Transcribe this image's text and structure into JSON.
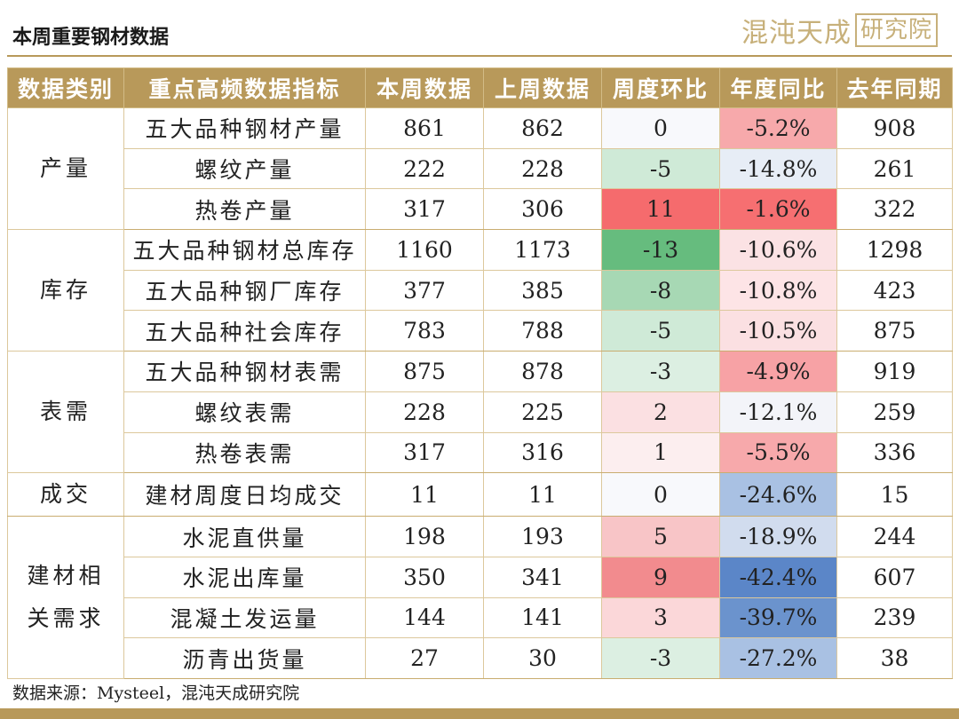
{
  "header": {
    "title": "本周重要钢材数据",
    "logo_text": "混沌天成研究院"
  },
  "colors": {
    "accent": "#b8995a"
  },
  "table": {
    "columns": [
      "数据类别",
      "重点高频数据指标",
      "本周数据",
      "上周数据",
      "周度环比",
      "年度同比",
      "去年同期"
    ],
    "rows": [
      {
        "category": "产量",
        "indicator": "五大品种钢材产量",
        "this_week": "861",
        "last_week": "862",
        "wow": "0",
        "yoy": "-5.2%",
        "last_year": "908",
        "wow_color": "#f8f9fc",
        "yoy_color": "#f7a9ab"
      },
      {
        "indicator": "螺纹产量",
        "this_week": "222",
        "last_week": "228",
        "wow": "-5",
        "yoy": "-14.8%",
        "last_year": "261",
        "wow_color": "#cfead7",
        "yoy_color": "#e7edf6"
      },
      {
        "indicator": "热卷产量",
        "this_week": "317",
        "last_week": "306",
        "wow": "11",
        "yoy": "-1.6%",
        "last_year": "322",
        "wow_color": "#f56b6d",
        "yoy_color": "#f66f71"
      },
      {
        "category": "库存",
        "indicator": "五大品种钢材总库存",
        "this_week": "1160",
        "last_week": "1173",
        "wow": "-13",
        "yoy": "-10.6%",
        "last_year": "1298",
        "wow_color": "#66bc7e",
        "yoy_color": "#fbe2e4"
      },
      {
        "indicator": "五大品种钢厂库存",
        "this_week": "377",
        "last_week": "385",
        "wow": "-8",
        "yoy": "-10.8%",
        "last_year": "423",
        "wow_color": "#a7d8b4",
        "yoy_color": "#fde4e6"
      },
      {
        "indicator": "五大品种社会库存",
        "this_week": "783",
        "last_week": "788",
        "wow": "-5",
        "yoy": "-10.5%",
        "last_year": "875",
        "wow_color": "#cfead7",
        "yoy_color": "#fbe0e2"
      },
      {
        "category": "表需",
        "indicator": "五大品种钢材表需",
        "this_week": "875",
        "last_week": "878",
        "wow": "-3",
        "yoy": "-4.9%",
        "last_year": "919",
        "wow_color": "#dcefe2",
        "yoy_color": "#f7a2a5"
      },
      {
        "indicator": "螺纹表需",
        "this_week": "228",
        "last_week": "225",
        "wow": "2",
        "yoy": "-12.1%",
        "last_year": "259",
        "wow_color": "#fbe0e2",
        "yoy_color": "#f3f4f9"
      },
      {
        "indicator": "热卷表需",
        "this_week": "317",
        "last_week": "316",
        "wow": "1",
        "yoy": "-5.5%",
        "last_year": "336",
        "wow_color": "#fceeef",
        "yoy_color": "#f7a9ab"
      },
      {
        "category": "成交",
        "indicator": "建材周度日均成交",
        "this_week": "11",
        "last_week": "11",
        "wow": "0",
        "yoy": "-24.6%",
        "last_year": "15",
        "wow_color": "#f8f9fc",
        "yoy_color": "#a9c1e3"
      },
      {
        "category": "建材相关需求",
        "indicator": "水泥直供量",
        "this_week": "198",
        "last_week": "193",
        "wow": "5",
        "yoy": "-18.9%",
        "last_year": "244",
        "wow_color": "#f8c5c7",
        "yoy_color": "#d1dcee"
      },
      {
        "indicator": "水泥出库量",
        "this_week": "350",
        "last_week": "341",
        "wow": "9",
        "yoy": "-42.4%",
        "last_year": "607",
        "wow_color": "#f28b8e",
        "yoy_color": "#5b86c8"
      },
      {
        "indicator": "混凝土发运量",
        "this_week": "144",
        "last_week": "141",
        "wow": "3",
        "yoy": "-39.7%",
        "last_year": "239",
        "wow_color": "#fbd7d9",
        "yoy_color": "#6b93cd"
      },
      {
        "indicator": "沥青出货量",
        "this_week": "27",
        "last_week": "30",
        "wow": "-3",
        "yoy": "-27.2%",
        "last_year": "38",
        "wow_color": "#dcefe2",
        "yoy_color": "#a9c1e3"
      }
    ]
  },
  "footer": {
    "source": "数据来源：Mysteel，混沌天成研究院"
  }
}
